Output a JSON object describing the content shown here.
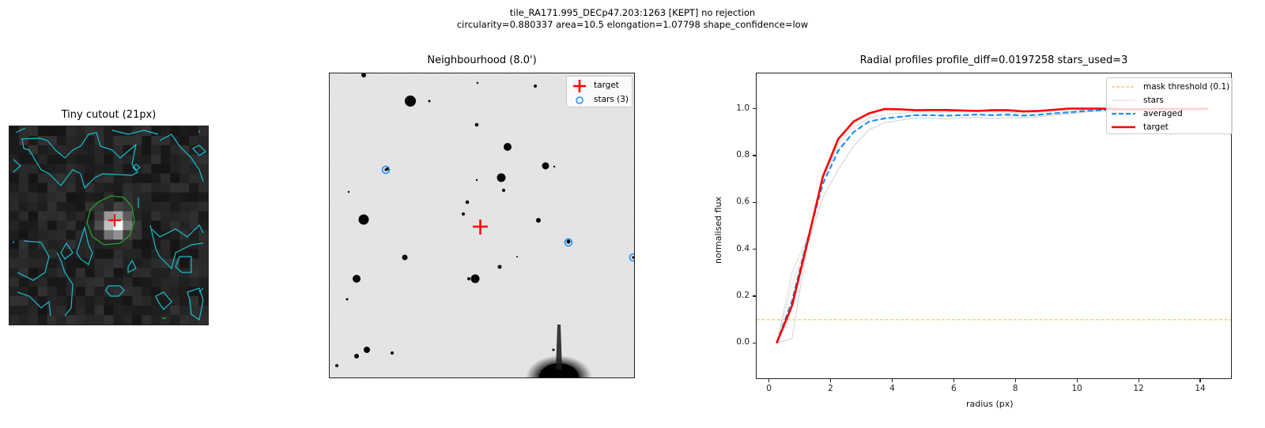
{
  "figure": {
    "suptitle_line1": "tile_RA171.995_DECp47.203:1263   [KEPT]   no rejection",
    "suptitle_line2": "circularity=0.880337  area=10.5  elongation=1.07798  shape_confidence=low"
  },
  "panels": {
    "cutout": {
      "title": "Tiny cutout (21px)",
      "grid_size": 21,
      "contour_color": "#17becf",
      "mask_contour_color": "#2ca02c",
      "marker_color": "#ff0000"
    },
    "neighbourhood": {
      "title": "Neighbourhood (8.0')",
      "legend": [
        {
          "icon": "red-plus-icon",
          "label": "target"
        },
        {
          "icon": "blue-circle-icon",
          "label": "stars (3)"
        }
      ],
      "target_marker_color": "#ff0000",
      "star_marker_color": "#1e90ff"
    },
    "radial": {
      "title": "Radial profiles  profile_diff=0.0197258  stars_used=3"
    }
  },
  "chart_data": {
    "type": "line",
    "title": "Radial profiles  profile_diff=0.0197258  stars_used=3",
    "xlabel": "radius (px)",
    "ylabel": "normalised flux",
    "xlim": [
      -0.4,
      15.0
    ],
    "ylim": [
      -0.15,
      1.15
    ],
    "xticks": [
      0,
      2,
      4,
      6,
      8,
      10,
      12,
      14
    ],
    "yticks": [
      0.0,
      0.2,
      0.4,
      0.6,
      0.8,
      1.0
    ],
    "grid": false,
    "legend_position": "upper right",
    "legend": [
      "mask threshold (0.1)",
      "stars",
      "averaged",
      "target"
    ],
    "x": [
      0.25,
      0.75,
      1.25,
      1.75,
      2.25,
      2.75,
      3.25,
      3.75,
      4.25,
      4.75,
      5.25,
      5.75,
      6.25,
      6.75,
      7.25,
      7.75,
      8.25,
      8.75,
      9.25,
      9.75,
      10.25,
      10.75,
      11.25,
      11.75,
      12.25,
      12.75,
      13.25,
      13.75,
      14.25
    ],
    "series": [
      {
        "name": "mask threshold (0.1)",
        "style": "hline",
        "color": "#ffbf40",
        "values": [
          0.1
        ]
      },
      {
        "name": "stars",
        "style": "thin",
        "color": "#d0d0d0",
        "values": [
          0.0,
          0.02,
          0.42,
          0.62,
          0.74,
          0.84,
          0.91,
          0.94,
          0.95,
          0.96,
          0.96,
          0.955,
          0.96,
          0.962,
          0.958,
          0.962,
          0.96,
          0.965,
          0.972,
          0.978,
          0.985,
          0.99,
          0.992,
          0.995,
          0.995,
          0.995,
          0.997,
          0.998,
          1.0
        ]
      },
      {
        "name": "stars",
        "style": "thin",
        "color": "#d8d8d8",
        "values": [
          0.0,
          0.3,
          0.45,
          0.7,
          0.85,
          0.92,
          0.96,
          0.975,
          0.98,
          0.985,
          0.985,
          0.985,
          0.99,
          0.99,
          0.985,
          0.985,
          0.98,
          0.985,
          0.99,
          0.99,
          0.995,
          0.995,
          0.998,
          0.998,
          0.998,
          0.999,
          1.0,
          1.0,
          1.0
        ]
      },
      {
        "name": "stars",
        "style": "thin",
        "color": "#e0e0e0",
        "values": [
          0.0,
          0.25,
          0.44,
          0.72,
          0.83,
          0.9,
          0.945,
          0.96,
          0.965,
          0.97,
          0.97,
          0.968,
          0.97,
          0.972,
          0.97,
          0.97,
          0.968,
          0.972,
          0.978,
          0.985,
          0.99,
          0.992,
          0.995,
          0.996,
          0.997,
          0.998,
          0.999,
          1.0,
          1.0
        ]
      },
      {
        "name": "averaged",
        "style": "dashed",
        "color": "#1e90ff",
        "values": [
          0.0,
          0.18,
          0.44,
          0.68,
          0.82,
          0.9,
          0.945,
          0.958,
          0.965,
          0.972,
          0.972,
          0.97,
          0.972,
          0.975,
          0.972,
          0.975,
          0.97,
          0.974,
          0.98,
          0.984,
          0.99,
          0.993,
          0.995,
          0.996,
          0.997,
          0.998,
          0.998,
          0.999,
          1.0
        ]
      },
      {
        "name": "target",
        "style": "solid",
        "color": "#ff0000",
        "values": [
          0.0,
          0.16,
          0.43,
          0.71,
          0.87,
          0.945,
          0.98,
          0.998,
          0.997,
          0.993,
          0.994,
          0.994,
          0.992,
          0.99,
          0.993,
          0.993,
          0.988,
          0.99,
          0.995,
          1.0,
          1.0,
          1.0,
          0.998,
          0.997,
          0.997,
          0.998,
          0.998,
          0.998,
          1.0
        ]
      }
    ]
  },
  "radial_legend": [
    {
      "icon": "mask-threshold-swatch-icon",
      "label": "mask threshold (0.1)"
    },
    {
      "icon": "stars-swatch-icon",
      "label": "stars"
    },
    {
      "icon": "averaged-swatch-icon",
      "label": "averaged"
    },
    {
      "icon": "target-swatch-icon",
      "label": "target"
    }
  ],
  "axes_text": {
    "xlabel": "radius (px)",
    "ylabel": "normalised flux",
    "xtick_labels": [
      "0",
      "2",
      "4",
      "6",
      "8",
      "10",
      "12",
      "14"
    ],
    "ytick_labels": [
      "0.0",
      "0.2",
      "0.4",
      "0.6",
      "0.8",
      "1.0"
    ]
  }
}
